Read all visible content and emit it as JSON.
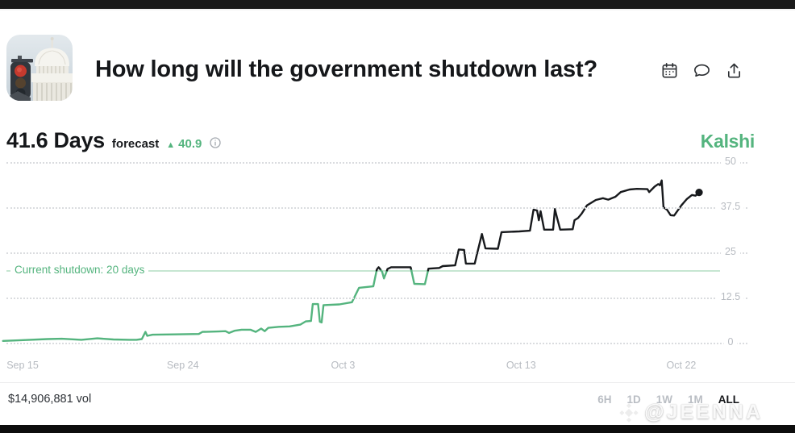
{
  "header": {
    "title": "How long will the government shutdown last?",
    "thumbnail": "us-capitol-with-red-traffic-light",
    "actions": [
      {
        "name": "calendar"
      },
      {
        "name": "comment"
      },
      {
        "name": "share"
      }
    ]
  },
  "forecast": {
    "value": "41.6 Days",
    "label": "forecast",
    "change_arrow": "▲",
    "change_value": "40.9",
    "change_direction": "up",
    "change_color": "#54b47e"
  },
  "brand": {
    "name": "Kalshi",
    "color": "#54b47e"
  },
  "chart_data": {
    "type": "line",
    "title": "How long will the government shutdown last?",
    "unit": "days",
    "current_value": 41.6,
    "ylim": [
      0,
      50
    ],
    "grid": "dotted-horizontal",
    "yticks": [
      {
        "value": 50,
        "label": "50"
      },
      {
        "value": 37.5,
        "label": "37.5"
      },
      {
        "value": 25,
        "label": "25"
      },
      {
        "value": 12.5,
        "label": "12.5"
      },
      {
        "value": 0,
        "label": "0"
      }
    ],
    "x_unit": "days since Sep 15",
    "xticks": [
      {
        "day": 0,
        "label": "Sep 15"
      },
      {
        "day": 9,
        "label": "Sep 24"
      },
      {
        "day": 18,
        "label": "Oct 3"
      },
      {
        "day": 28,
        "label": "Oct 13"
      },
      {
        "day": 37,
        "label": "Oct 22"
      }
    ],
    "threshold": {
      "label": "Current shutdown: 20 days",
      "value": 20,
      "color": "#c6e6d2"
    },
    "colors": {
      "below_threshold": "#54b47e",
      "above_threshold": "#17191c"
    },
    "series": [
      {
        "name": "forecast (days)",
        "points": [
          [
            -1.1,
            0.5
          ],
          [
            -0.1,
            0.7
          ],
          [
            1.4,
            1.0
          ],
          [
            2.2,
            1.1
          ],
          [
            3.3,
            0.8
          ],
          [
            4.2,
            1.2
          ],
          [
            5.1,
            0.9
          ],
          [
            6.0,
            0.8
          ],
          [
            6.4,
            0.8
          ],
          [
            6.7,
            1.0
          ],
          [
            6.9,
            3.0
          ],
          [
            7.0,
            1.9
          ],
          [
            7.3,
            2.2
          ],
          [
            8.5,
            2.3
          ],
          [
            9.9,
            2.4
          ],
          [
            10.1,
            3.0
          ],
          [
            11.0,
            3.1
          ],
          [
            11.4,
            3.2
          ],
          [
            11.6,
            2.7
          ],
          [
            11.9,
            3.3
          ],
          [
            12.3,
            3.6
          ],
          [
            12.8,
            3.6
          ],
          [
            13.1,
            3.0
          ],
          [
            13.4,
            3.9
          ],
          [
            13.6,
            3.2
          ],
          [
            13.8,
            4.1
          ],
          [
            14.4,
            4.4
          ],
          [
            15.0,
            4.5
          ],
          [
            15.6,
            5.0
          ],
          [
            15.9,
            5.9
          ],
          [
            16.2,
            6.0
          ],
          [
            16.3,
            10.7
          ],
          [
            16.6,
            10.7
          ],
          [
            16.7,
            5.8
          ],
          [
            16.8,
            5.6
          ],
          [
            16.9,
            10.4
          ],
          [
            17.8,
            10.6
          ],
          [
            18.5,
            11.2
          ],
          [
            18.9,
            15.2
          ],
          [
            19.7,
            15.6
          ],
          [
            19.9,
            20.3
          ],
          [
            20.0,
            20.9
          ],
          [
            20.2,
            19.6
          ],
          [
            20.3,
            17.8
          ],
          [
            20.5,
            20.4
          ],
          [
            20.7,
            20.9
          ],
          [
            21.8,
            20.9
          ],
          [
            22.0,
            16.3
          ],
          [
            22.6,
            16.2
          ],
          [
            22.8,
            20.5
          ],
          [
            23.4,
            20.7
          ],
          [
            23.6,
            21.2
          ],
          [
            24.3,
            21.4
          ],
          [
            24.5,
            25.8
          ],
          [
            24.8,
            25.7
          ],
          [
            24.9,
            21.9
          ],
          [
            25.4,
            21.9
          ],
          [
            25.5,
            24.0
          ],
          [
            25.8,
            30.1
          ],
          [
            26.0,
            26.1
          ],
          [
            26.7,
            26.0
          ],
          [
            26.9,
            30.6
          ],
          [
            27.9,
            30.8
          ],
          [
            28.5,
            31.0
          ],
          [
            28.7,
            36.8
          ],
          [
            28.9,
            36.6
          ],
          [
            29.0,
            33.9
          ],
          [
            29.1,
            36.4
          ],
          [
            29.3,
            31.3
          ],
          [
            29.8,
            31.3
          ],
          [
            29.9,
            37.0
          ],
          [
            30.0,
            35.0
          ],
          [
            30.2,
            31.3
          ],
          [
            30.9,
            31.4
          ],
          [
            31.0,
            33.9
          ],
          [
            31.2,
            34.5
          ],
          [
            31.4,
            35.7
          ],
          [
            31.7,
            38.0
          ],
          [
            32.2,
            39.5
          ],
          [
            32.6,
            40.0
          ],
          [
            32.9,
            39.6
          ],
          [
            33.3,
            40.4
          ],
          [
            33.6,
            41.7
          ],
          [
            34.1,
            42.4
          ],
          [
            34.5,
            42.6
          ],
          [
            35.1,
            42.5
          ],
          [
            35.2,
            41.7
          ],
          [
            35.5,
            43.2
          ],
          [
            35.7,
            43.9
          ],
          [
            35.8,
            43.6
          ],
          [
            35.9,
            44.9
          ],
          [
            36.0,
            37.5
          ],
          [
            36.2,
            36.8
          ],
          [
            36.4,
            35.3
          ],
          [
            36.6,
            35.2
          ],
          [
            37.0,
            38.0
          ],
          [
            37.3,
            39.7
          ],
          [
            37.6,
            40.9
          ],
          [
            37.8,
            40.7
          ],
          [
            38.0,
            41.6
          ]
        ]
      }
    ],
    "legend": "none",
    "endpoint_dot": true
  },
  "footer": {
    "volume": "$14,906,881 vol",
    "ranges": [
      "6H",
      "1D",
      "1W",
      "1M",
      "ALL"
    ],
    "active_range": "ALL"
  },
  "watermark": {
    "icon": "binance-diamond-logo",
    "text": "@JEENNA"
  }
}
